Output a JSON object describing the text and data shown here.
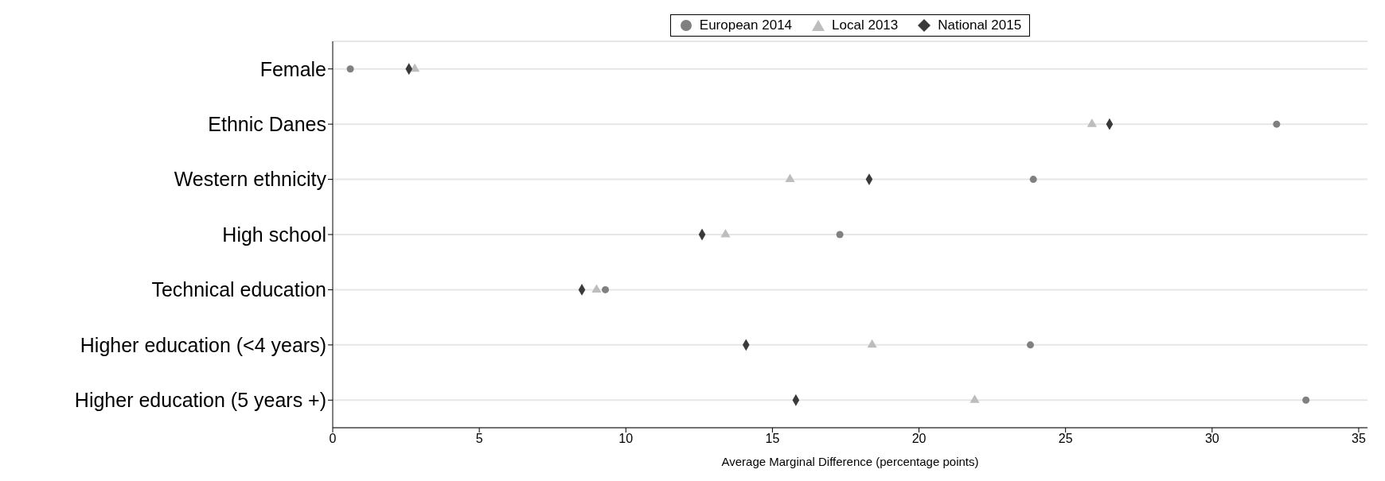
{
  "chart_data": {
    "type": "scatter",
    "orientation": "horizontal",
    "xlabel": "Average Marginal Difference (percentage points)",
    "categories": [
      "Female",
      "Ethnic Danes",
      "Western ethnicity",
      "High school",
      "Technical education",
      "Higher education (<4 years)",
      "Higher education (5 years +)"
    ],
    "series": [
      {
        "name": "Local 2013",
        "color": "#bdbdbd",
        "marker": "triangle",
        "values": [
          2.8,
          25.9,
          15.6,
          13.4,
          9.0,
          18.4,
          21.9
        ]
      },
      {
        "name": "European 2014",
        "color": "#808080",
        "marker": "circle",
        "values": [
          0.6,
          32.2,
          23.9,
          17.3,
          9.3,
          23.8,
          33.2
        ]
      },
      {
        "name": "National 2015",
        "color": "#3a3a3a",
        "marker": "diamond",
        "values": [
          2.6,
          26.5,
          18.3,
          12.6,
          8.5,
          14.1,
          15.8
        ]
      }
    ],
    "xlim": [
      0,
      35.3
    ],
    "xticks": [
      0,
      5,
      10,
      15,
      20,
      25,
      30,
      35
    ],
    "grid": "y",
    "legend": "top"
  }
}
